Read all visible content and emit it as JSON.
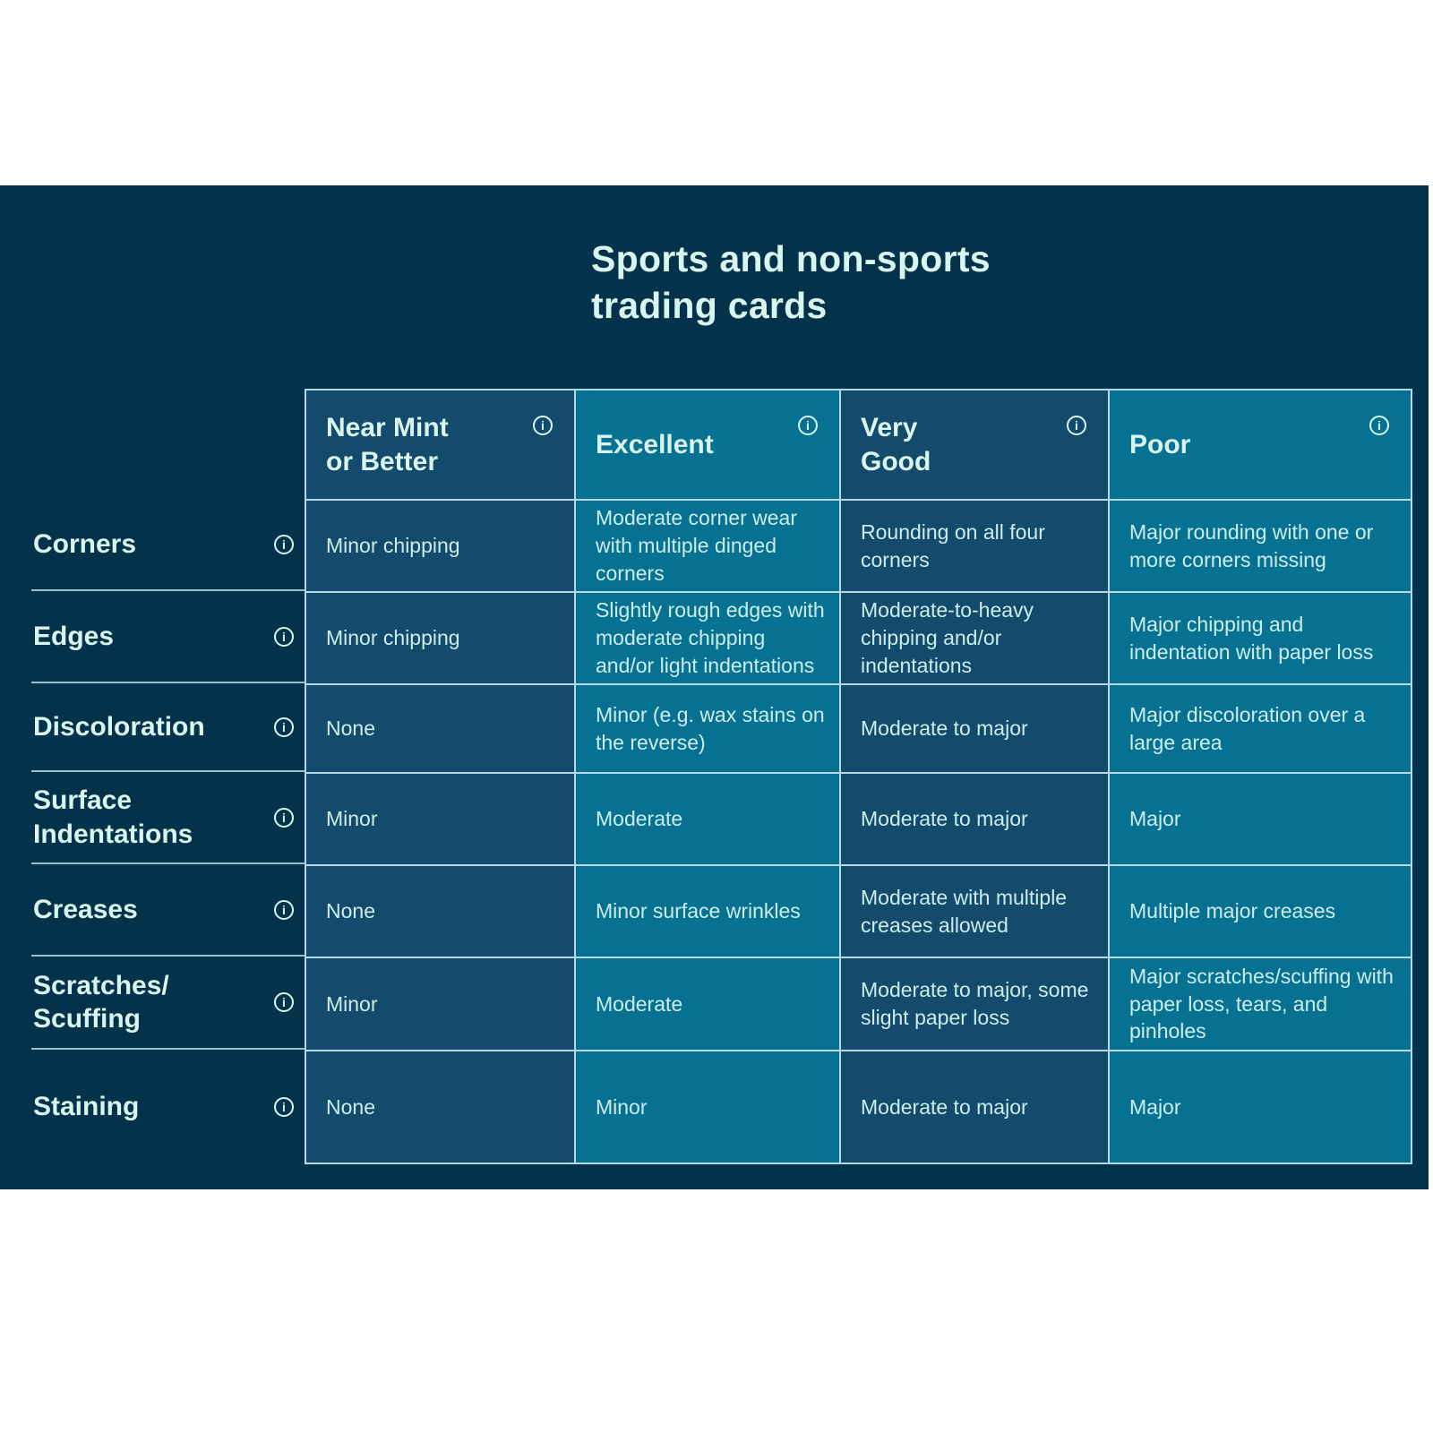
{
  "colors": {
    "page_bg": "#ffffff",
    "panel_bg": "#04324a",
    "cell_dark": "#144a6c",
    "cell_teal": "#077191",
    "grid_line": "#b3d9e4",
    "text_bright": "#d8f5ee",
    "text_cell": "#cbeded"
  },
  "panel": {
    "title": "Sports and non-sports\ntrading cards"
  },
  "table": {
    "info_icon": "i",
    "columns": [
      {
        "label": "Near Mint\nor Better",
        "tone": "dark"
      },
      {
        "label": "Excellent",
        "tone": "teal"
      },
      {
        "label": "Very\nGood",
        "tone": "dark"
      },
      {
        "label": "Poor",
        "tone": "teal"
      }
    ],
    "rows": [
      {
        "label": "Corners",
        "cells": [
          "Minor chipping",
          "Moderate corner wear with multiple dinged corners",
          "Rounding on all four corners",
          "Major rounding with one or more corners missing"
        ]
      },
      {
        "label": "Edges",
        "cells": [
          "Minor chipping",
          "Slightly rough edges with moderate chipping and/or light indentations",
          "Moderate-to-heavy chipping and/or indentations",
          "Major chipping and indentation with paper loss"
        ]
      },
      {
        "label": "Discoloration",
        "cells": [
          "None",
          "Minor (e.g. wax stains on the reverse)",
          "Moderate to major",
          "Major discoloration over a large area"
        ]
      },
      {
        "label": "Surface\nIndentations",
        "cells": [
          "Minor",
          "Moderate",
          "Moderate to major",
          "Major"
        ]
      },
      {
        "label": "Creases",
        "cells": [
          "None",
          "Minor surface wrinkles",
          "Moderate with multiple creases allowed",
          "Multiple major creases"
        ]
      },
      {
        "label": "Scratches/\nScuffing",
        "cells": [
          "Minor",
          "Moderate",
          "Moderate to major, some slight paper loss",
          "Major scratches/scuffing with paper loss, tears, and pinholes"
        ]
      },
      {
        "label": "Staining",
        "cells": [
          "None",
          "Minor",
          "Moderate to major",
          "Major"
        ]
      }
    ]
  }
}
